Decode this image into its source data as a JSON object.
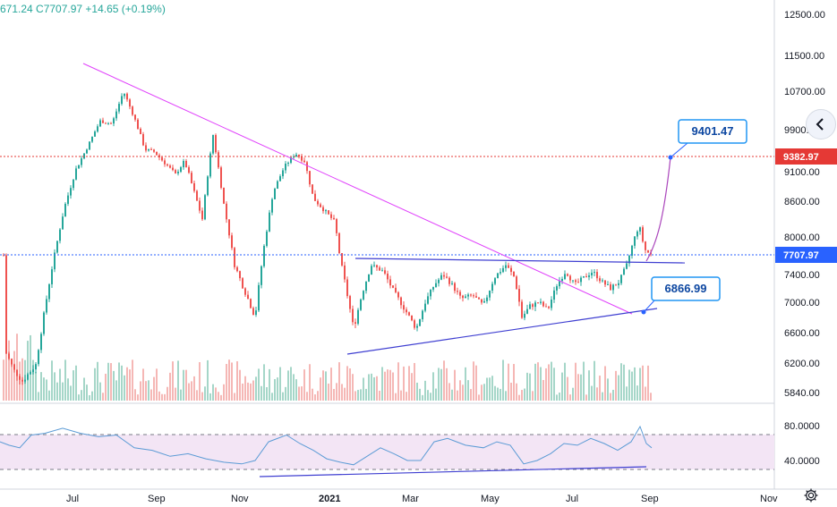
{
  "header": {
    "ohlc_text": "671.24  C7707.97  +14.65 (+0.19%)"
  },
  "chart_data": {
    "type": "candlestick",
    "price_axis": {
      "ticks": [
        "12500.00",
        "11500.00",
        "10700.00",
        "9900.00",
        "9100.00",
        "8600.00",
        "8000.00",
        "7400.00",
        "7000.00",
        "6600.00",
        "6200.00",
        "5840.00"
      ]
    },
    "time_axis": {
      "ticks": [
        "Jul",
        "Sep",
        "Nov",
        "2021",
        "Mar",
        "May",
        "Jul",
        "Sep",
        "Nov"
      ]
    },
    "rsi_axis": {
      "ticks": [
        "80.0000",
        "40.0000"
      ]
    },
    "price_labels": {
      "horizontal_line": "9382.97",
      "last_price": "7707.97"
    },
    "annotations": [
      {
        "text": "9401.47"
      },
      {
        "text": "6866.99"
      }
    ],
    "colors": {
      "up": "#26a69a",
      "down": "#ef5350",
      "trend_down": "#e040fb",
      "channel": "#3f3fd1",
      "hline": "#e53935",
      "last": "#2962ff",
      "rsi": "#5b9bd5",
      "rsi_band": "#f3e5f5"
    },
    "close_path": [
      [
        5,
        6380
      ],
      [
        15,
        6120
      ],
      [
        25,
        5980
      ],
      [
        40,
        6180
      ],
      [
        52,
        7050
      ],
      [
        60,
        7650
      ],
      [
        72,
        8500
      ],
      [
        85,
        9150
      ],
      [
        100,
        9650
      ],
      [
        112,
        10080
      ],
      [
        125,
        10020
      ],
      [
        138,
        10700
      ],
      [
        150,
        10150
      ],
      [
        162,
        9520
      ],
      [
        172,
        9480
      ],
      [
        185,
        9250
      ],
      [
        196,
        9050
      ],
      [
        206,
        9300
      ],
      [
        216,
        8800
      ],
      [
        226,
        8300
      ],
      [
        238,
        9800
      ],
      [
        250,
        8550
      ],
      [
        262,
        7550
      ],
      [
        272,
        7200
      ],
      [
        285,
        6800
      ],
      [
        295,
        7850
      ],
      [
        305,
        8750
      ],
      [
        318,
        9200
      ],
      [
        330,
        9450
      ],
      [
        340,
        9300
      ],
      [
        350,
        8650
      ],
      [
        362,
        8450
      ],
      [
        374,
        8250
      ],
      [
        380,
        7650
      ],
      [
        388,
        7100
      ],
      [
        395,
        6650
      ],
      [
        405,
        7150
      ],
      [
        415,
        7550
      ],
      [
        428,
        7450
      ],
      [
        440,
        7150
      ],
      [
        455,
        6850
      ],
      [
        465,
        6650
      ],
      [
        475,
        7000
      ],
      [
        485,
        7250
      ],
      [
        495,
        7400
      ],
      [
        505,
        7250
      ],
      [
        515,
        7050
      ],
      [
        528,
        7100
      ],
      [
        540,
        6950
      ],
      [
        552,
        7350
      ],
      [
        565,
        7550
      ],
      [
        575,
        7350
      ],
      [
        583,
        6800
      ],
      [
        592,
        6950
      ],
      [
        602,
        7000
      ],
      [
        612,
        6900
      ],
      [
        622,
        7250
      ],
      [
        632,
        7450
      ],
      [
        642,
        7250
      ],
      [
        652,
        7350
      ],
      [
        662,
        7450
      ],
      [
        672,
        7300
      ],
      [
        682,
        7200
      ],
      [
        692,
        7300
      ],
      [
        700,
        7550
      ],
      [
        708,
        7950
      ],
      [
        714,
        8200
      ],
      [
        720,
        7800
      ],
      [
        728,
        7708
      ]
    ],
    "rsi_values": [
      [
        0,
        62
      ],
      [
        10,
        58
      ],
      [
        22,
        55
      ],
      [
        35,
        70
      ],
      [
        50,
        72
      ],
      [
        70,
        78
      ],
      [
        90,
        72
      ],
      [
        110,
        68
      ],
      [
        130,
        70
      ],
      [
        150,
        55
      ],
      [
        170,
        52
      ],
      [
        190,
        45
      ],
      [
        210,
        48
      ],
      [
        230,
        42
      ],
      [
        250,
        38
      ],
      [
        270,
        36
      ],
      [
        285,
        40
      ],
      [
        300,
        62
      ],
      [
        320,
        70
      ],
      [
        335,
        60
      ],
      [
        350,
        52
      ],
      [
        365,
        42
      ],
      [
        380,
        38
      ],
      [
        395,
        35
      ],
      [
        410,
        45
      ],
      [
        425,
        55
      ],
      [
        440,
        48
      ],
      [
        455,
        40
      ],
      [
        470,
        40
      ],
      [
        485,
        62
      ],
      [
        500,
        66
      ],
      [
        520,
        58
      ],
      [
        540,
        55
      ],
      [
        555,
        62
      ],
      [
        570,
        58
      ],
      [
        585,
        36
      ],
      [
        600,
        40
      ],
      [
        615,
        48
      ],
      [
        630,
        60
      ],
      [
        645,
        58
      ],
      [
        660,
        66
      ],
      [
        675,
        60
      ],
      [
        690,
        52
      ],
      [
        705,
        62
      ],
      [
        715,
        80
      ],
      [
        722,
        60
      ],
      [
        728,
        55
      ]
    ]
  }
}
